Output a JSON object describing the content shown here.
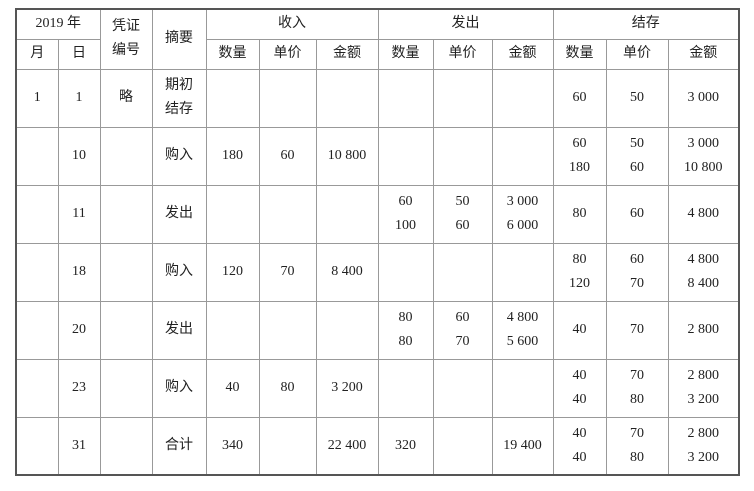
{
  "header": {
    "year": "2019 年",
    "voucher": [
      "凭证",
      "编号"
    ],
    "summary": "摘要",
    "income": "收入",
    "issue": "发出",
    "balance": "结存",
    "month": "月",
    "day": "日",
    "qty": "数量",
    "price": "单价",
    "amount": "金额"
  },
  "rows": [
    {
      "month": "1",
      "day": "1",
      "voucher": "略",
      "summary": [
        "期初",
        "结存"
      ],
      "in_qty": [],
      "in_price": [],
      "in_amt": [],
      "out_qty": [],
      "out_price": [],
      "out_amt": [],
      "bal_qty": [
        "60"
      ],
      "bal_price": [
        "50"
      ],
      "bal_amt": [
        "3 000"
      ]
    },
    {
      "month": "",
      "day": "10",
      "voucher": "",
      "summary": [
        "购入"
      ],
      "in_qty": [
        "180"
      ],
      "in_price": [
        "60"
      ],
      "in_amt": [
        "10 800"
      ],
      "out_qty": [],
      "out_price": [],
      "out_amt": [],
      "bal_qty": [
        "60",
        "180"
      ],
      "bal_price": [
        "50",
        "60"
      ],
      "bal_amt": [
        "3 000",
        "10 800"
      ]
    },
    {
      "month": "",
      "day": "11",
      "voucher": "",
      "summary": [
        "发出"
      ],
      "in_qty": [],
      "in_price": [],
      "in_amt": [],
      "out_qty": [
        "60",
        "100"
      ],
      "out_price": [
        "50",
        "60"
      ],
      "out_amt": [
        "3 000",
        "6 000"
      ],
      "bal_qty": [
        "80"
      ],
      "bal_price": [
        "60"
      ],
      "bal_amt": [
        "4 800"
      ]
    },
    {
      "month": "",
      "day": "18",
      "voucher": "",
      "summary": [
        "购入"
      ],
      "in_qty": [
        "120"
      ],
      "in_price": [
        "70"
      ],
      "in_amt": [
        "8 400"
      ],
      "out_qty": [],
      "out_price": [],
      "out_amt": [],
      "bal_qty": [
        "80",
        "120"
      ],
      "bal_price": [
        "60",
        "70"
      ],
      "bal_amt": [
        "4 800",
        "8 400"
      ]
    },
    {
      "month": "",
      "day": "20",
      "voucher": "",
      "summary": [
        "发出"
      ],
      "in_qty": [],
      "in_price": [],
      "in_amt": [],
      "out_qty": [
        "80",
        "80"
      ],
      "out_price": [
        "60",
        "70"
      ],
      "out_amt": [
        "4 800",
        "5 600"
      ],
      "bal_qty": [
        "40"
      ],
      "bal_price": [
        "70"
      ],
      "bal_amt": [
        "2 800"
      ]
    },
    {
      "month": "",
      "day": "23",
      "voucher": "",
      "summary": [
        "购入"
      ],
      "in_qty": [
        "40"
      ],
      "in_price": [
        "80"
      ],
      "in_amt": [
        "3 200"
      ],
      "out_qty": [],
      "out_price": [],
      "out_amt": [],
      "bal_qty": [
        "40",
        "40"
      ],
      "bal_price": [
        "70",
        "80"
      ],
      "bal_amt": [
        "2 800",
        "3 200"
      ]
    },
    {
      "month": "",
      "day": "31",
      "voucher": "",
      "summary": [
        "合计"
      ],
      "in_qty": [
        "340"
      ],
      "in_price": [],
      "in_amt": [
        "22 400"
      ],
      "out_qty": [
        "320"
      ],
      "out_price": [],
      "out_amt": [
        "19 400"
      ],
      "bal_qty": [
        "40",
        "40"
      ],
      "bal_price": [
        "70",
        "80"
      ],
      "bal_amt": [
        "2 800",
        "3 200"
      ]
    }
  ]
}
